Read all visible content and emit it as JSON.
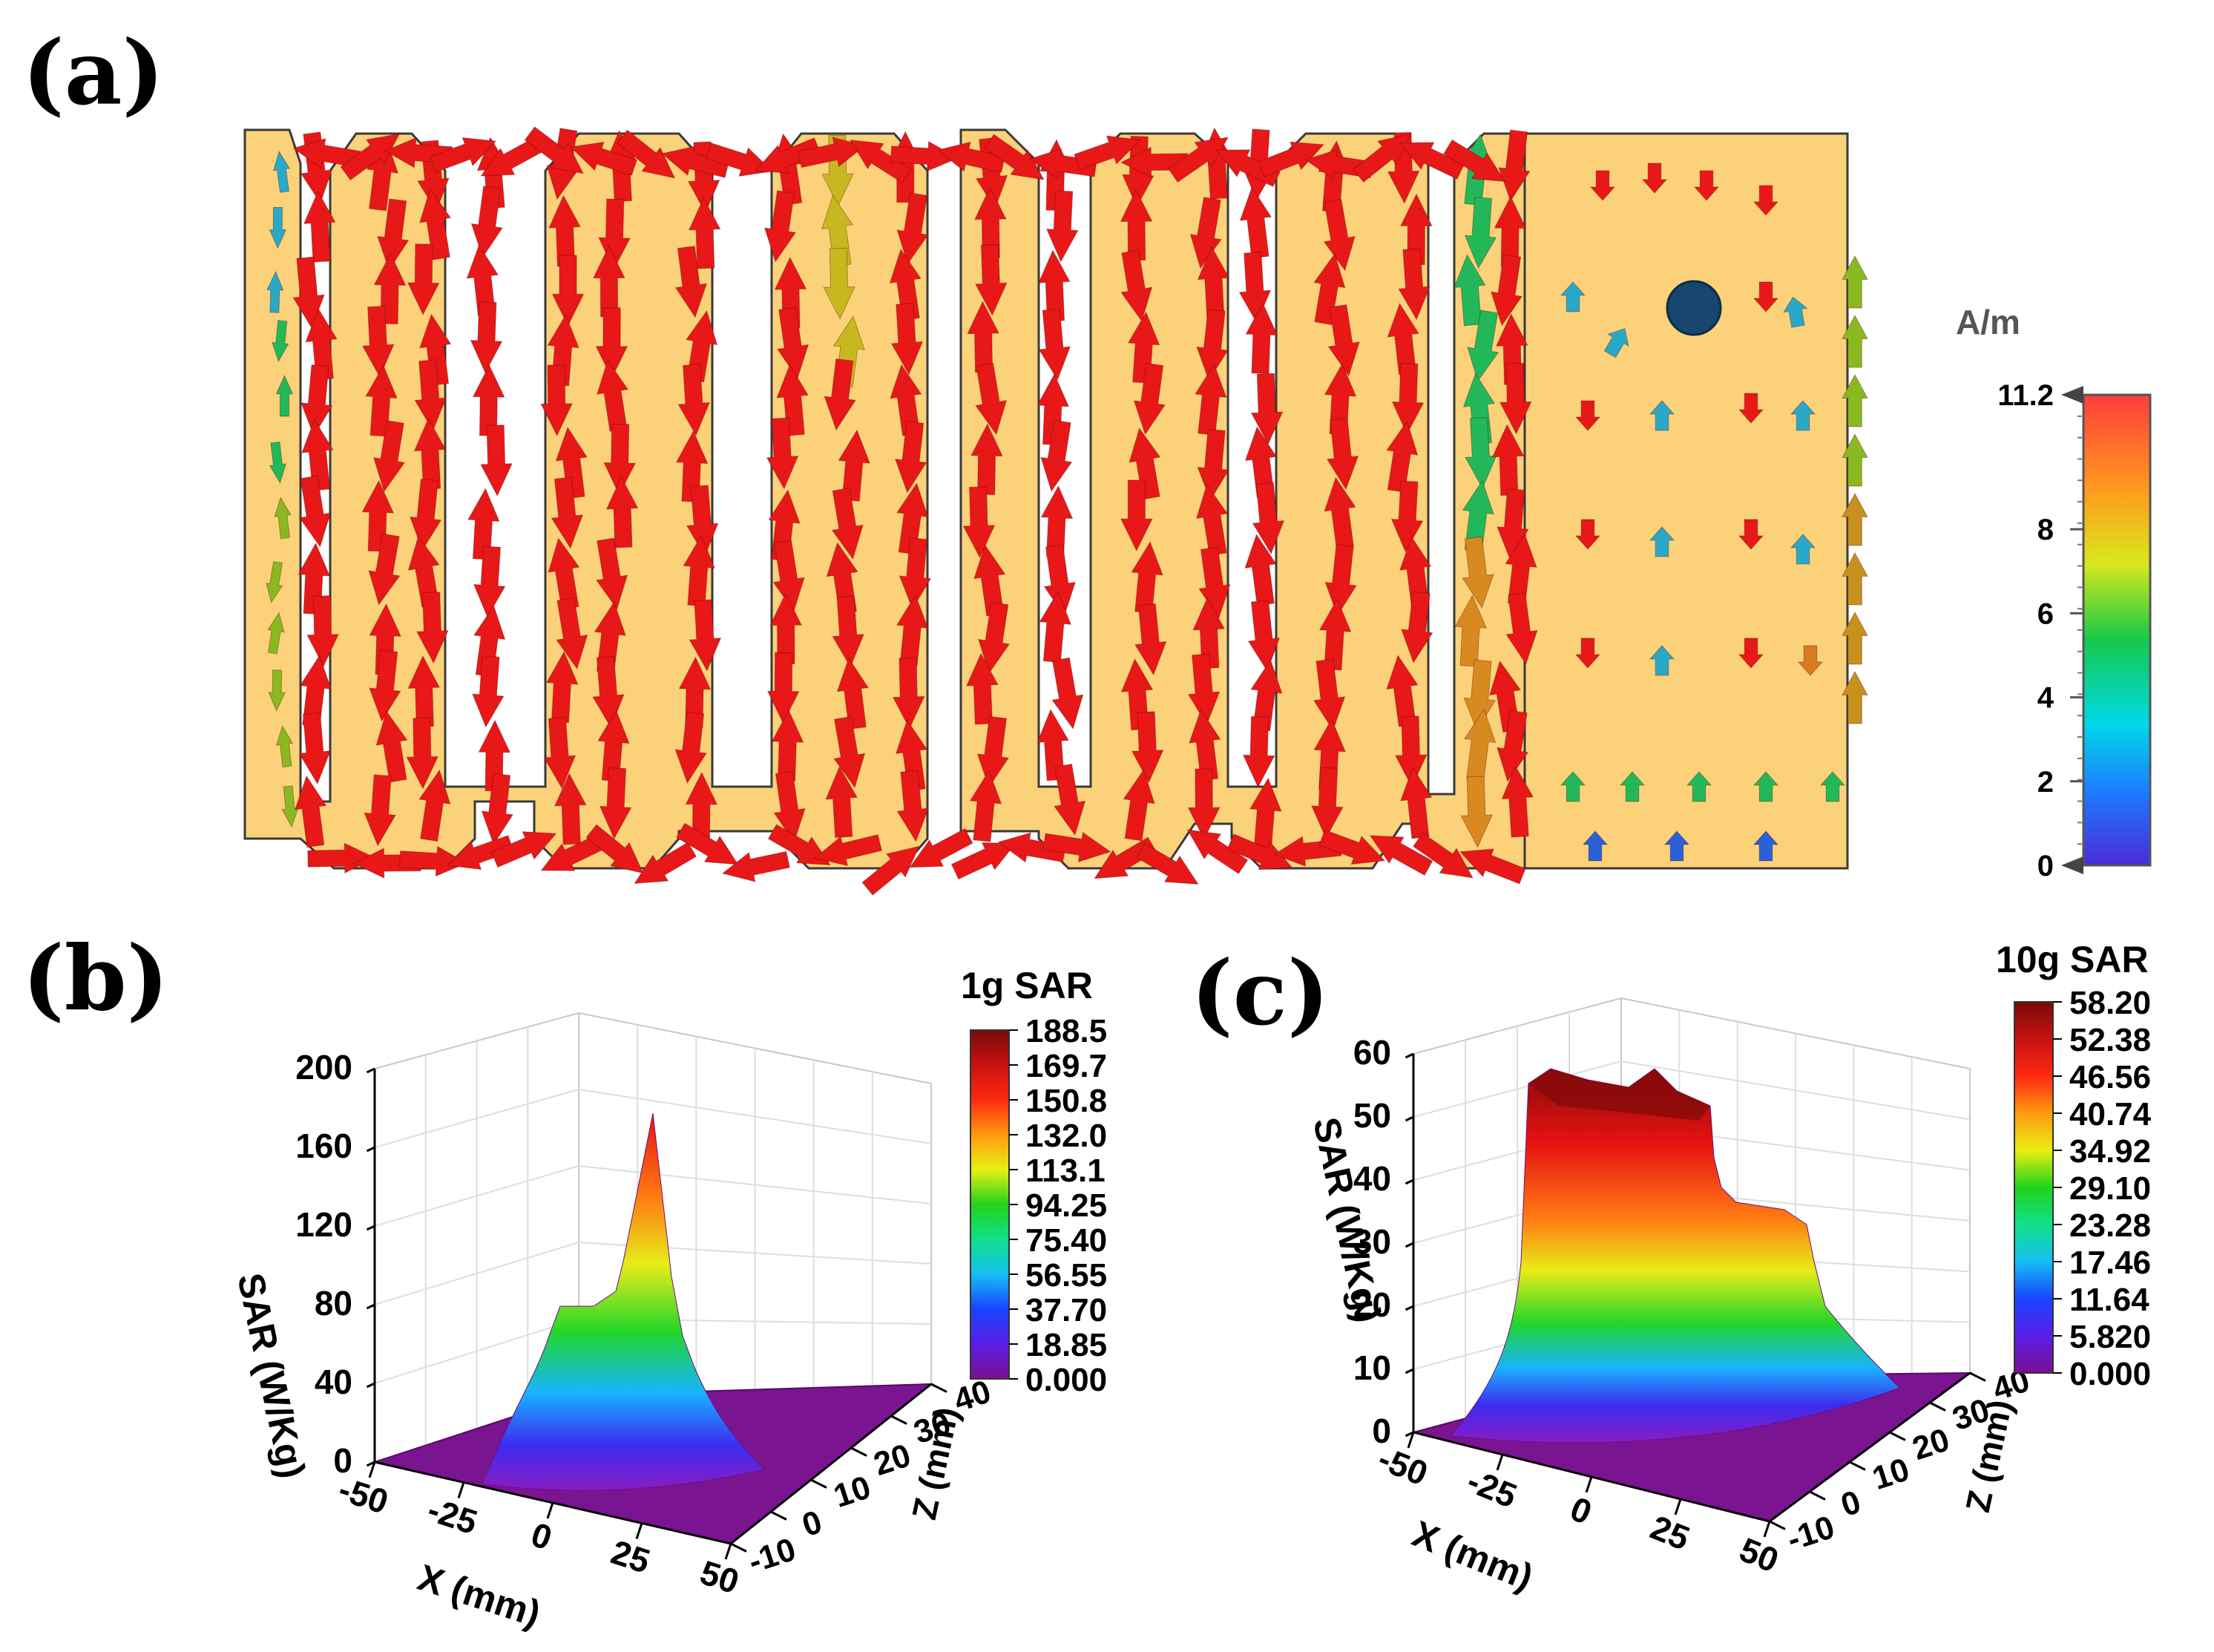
{
  "panels": {
    "a": {
      "label": "(a)",
      "unit": "A/m",
      "scale_ticks": [
        "11.2",
        "8",
        "6",
        "4",
        "2",
        "0"
      ],
      "scale_values": [
        11.2,
        8,
        6,
        4,
        2,
        0
      ],
      "scale_max": 11.2,
      "colors": {
        "antenna_fill": "#fbd27a",
        "outline": "#3a3a3a",
        "feed": "#17476e"
      }
    },
    "b": {
      "label": "(b)",
      "colorbar_title": "1g SAR",
      "colorbar_ticks": [
        "188.5",
        "169.7",
        "150.8",
        "132.0",
        "113.1",
        "94.25",
        "75.40",
        "56.55",
        "37.70",
        "18.85",
        "0.000"
      ]
    },
    "c": {
      "label": "(c)",
      "colorbar_title": "10g SAR",
      "colorbar_ticks": [
        "58.20",
        "52.38",
        "46.56",
        "40.74",
        "34.92",
        "29.10",
        "23.28",
        "17.46",
        "11.64",
        "5.820",
        "0.000"
      ]
    }
  },
  "chart_data": [
    {
      "type": "vector-field",
      "unit": "A/m",
      "range": [
        0,
        11.2
      ]
    },
    {
      "type": "surface",
      "xlabel": "X (mm)",
      "ylabel": "Z (mm)",
      "zlabel": "SAR (W/Kg)",
      "x_ticks": [
        "-50",
        "-25",
        "0",
        "25",
        "50"
      ],
      "y_ticks": [
        "-10",
        "0",
        "10",
        "20",
        "30",
        "40"
      ],
      "z_ticks": [
        "0",
        "40",
        "80",
        "120",
        "160",
        "200"
      ],
      "xlim": [
        -50,
        50
      ],
      "ylim": [
        -10,
        40
      ],
      "zlim": [
        0,
        200
      ],
      "colorbar_range": [
        0,
        188.5
      ],
      "peaks": [
        {
          "x": 5,
          "z": 10,
          "value": 188.5
        },
        {
          "x": -5,
          "z": 8,
          "value": 80
        }
      ]
    },
    {
      "type": "surface",
      "xlabel": "X (mm)",
      "ylabel": "Z (mm)",
      "zlabel": "SAR (W/Kg)",
      "x_ticks": [
        "-50",
        "-25",
        "0",
        "25",
        "50"
      ],
      "y_ticks": [
        "-10",
        "0",
        "10",
        "20",
        "30",
        "40"
      ],
      "z_ticks": [
        "0",
        "10",
        "20",
        "30",
        "40",
        "50",
        "60"
      ],
      "xlim": [
        -50,
        50
      ],
      "ylim": [
        -10,
        40
      ],
      "zlim": [
        0,
        60
      ],
      "colorbar_range": [
        0,
        58.2
      ],
      "peaks": [
        {
          "x": 0,
          "z": 8,
          "value": 52,
          "type": "plateau"
        },
        {
          "x": 25,
          "z": 5,
          "value": 37,
          "type": "plateau"
        }
      ]
    }
  ]
}
